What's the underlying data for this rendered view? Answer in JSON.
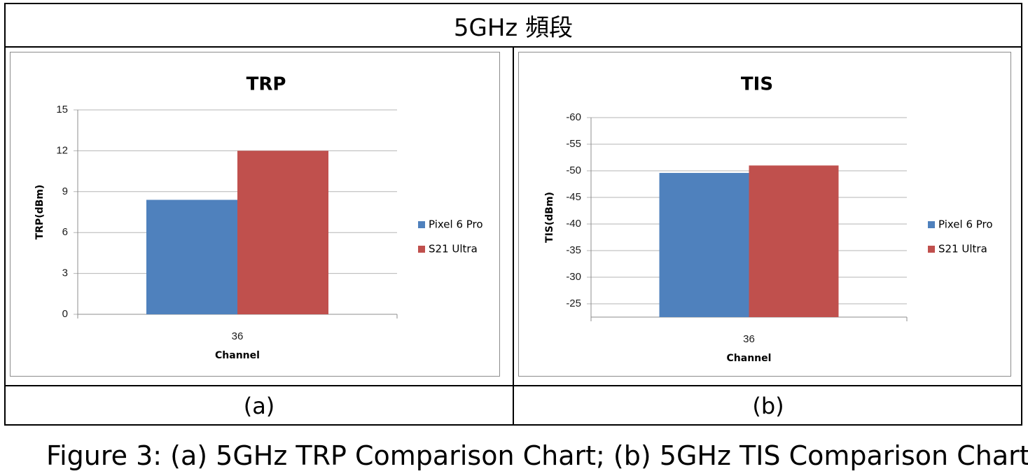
{
  "table": {
    "header": "5GHz 頻段",
    "label_a": "(a)",
    "label_b": "(b)"
  },
  "caption": "Figure 3: (a) 5GHz TRP Comparison Chart; (b) 5GHz TIS Comparison Chart",
  "chart_data": [
    {
      "id": "trp",
      "type": "bar",
      "title": "TRP",
      "xlabel": "Channel",
      "ylabel": "TRP(dBm)",
      "categories": [
        "36"
      ],
      "yticks": [
        0,
        3,
        6,
        9,
        12,
        15
      ],
      "ylim": [
        0,
        15
      ],
      "reversed": false,
      "grid": true,
      "legend_position": "right",
      "series": [
        {
          "name": "Pixel 6 Pro",
          "color": "#4f81bd",
          "values": [
            8.4
          ]
        },
        {
          "name": "S21 Ultra",
          "color": "#c0504d",
          "values": [
            12
          ]
        }
      ]
    },
    {
      "id": "tis",
      "type": "bar",
      "title": "TIS",
      "xlabel": "Channel",
      "ylabel": "TIS(dBm)",
      "categories": [
        "36"
      ],
      "yticks": [
        -25,
        -30,
        -35,
        -40,
        -45,
        -50,
        -55,
        -60
      ],
      "ylim": [
        -22.5,
        -60
      ],
      "reversed": true,
      "grid": true,
      "legend_position": "right",
      "series": [
        {
          "name": "Pixel 6 Pro",
          "color": "#4f81bd",
          "values": [
            -49.6
          ]
        },
        {
          "name": "S21 Ultra",
          "color": "#c0504d",
          "values": [
            -51
          ]
        }
      ]
    }
  ]
}
